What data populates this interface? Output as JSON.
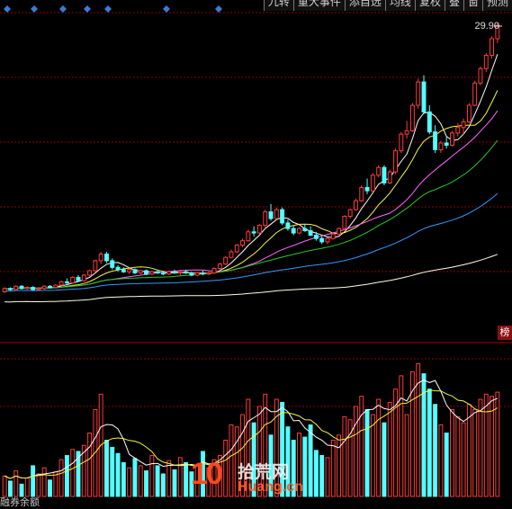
{
  "toolbar": {
    "items": [
      "九转",
      "重大事件",
      "添自选",
      "均线",
      "复权",
      "叠",
      "窗",
      "预测"
    ]
  },
  "price_label": "29.90",
  "side_tag": "榜",
  "bottom_label": "融券余额",
  "watermark": {
    "cn": "拾荒网",
    "en": "Huang.cn"
  },
  "colors": {
    "up": "#ff3b3b",
    "down": "#54ffff",
    "grid": "#8a0000",
    "ma5": "#ffffff",
    "ma10": "#f5f542",
    "ma20": "#ff66ff",
    "ma30": "#22cc22",
    "ma60": "#3399ff",
    "ma120": "#ffffe6",
    "diamond": "#3b7bd6"
  },
  "chart_data": {
    "type": "candlestick",
    "price_axis_max_label": "29.90",
    "candles": [
      [
        7.0,
        7.4,
        6.9,
        7.3
      ],
      [
        7.3,
        7.4,
        7.1,
        7.2
      ],
      [
        7.2,
        7.6,
        7.1,
        7.5
      ],
      [
        7.5,
        7.6,
        7.2,
        7.3
      ],
      [
        7.3,
        7.5,
        7.2,
        7.4
      ],
      [
        7.4,
        7.5,
        7.1,
        7.2
      ],
      [
        7.2,
        7.4,
        7.1,
        7.3
      ],
      [
        7.3,
        7.6,
        7.2,
        7.5
      ],
      [
        7.5,
        7.6,
        7.3,
        7.4
      ],
      [
        7.4,
        7.7,
        7.3,
        7.6
      ],
      [
        7.6,
        8.0,
        7.5,
        7.9
      ],
      [
        7.9,
        8.2,
        7.7,
        7.8
      ],
      [
        7.8,
        8.4,
        7.7,
        8.3
      ],
      [
        8.3,
        8.5,
        7.9,
        8.0
      ],
      [
        8.0,
        8.6,
        7.9,
        8.5
      ],
      [
        8.5,
        9.0,
        8.4,
        8.9
      ],
      [
        8.9,
        9.9,
        8.8,
        9.8
      ],
      [
        9.8,
        10.6,
        9.5,
        10.4
      ],
      [
        10.4,
        10.6,
        9.6,
        9.8
      ],
      [
        9.8,
        10.0,
        9.0,
        9.2
      ],
      [
        9.2,
        9.4,
        8.8,
        9.0
      ],
      [
        9.0,
        9.2,
        8.7,
        8.8
      ],
      [
        8.8,
        9.1,
        8.6,
        9.0
      ],
      [
        9.0,
        9.1,
        8.6,
        8.7
      ],
      [
        8.7,
        9.0,
        8.6,
        8.9
      ],
      [
        8.9,
        9.0,
        8.5,
        8.6
      ],
      [
        8.6,
        8.9,
        8.5,
        8.8
      ],
      [
        8.8,
        9.0,
        8.6,
        8.7
      ],
      [
        8.7,
        8.9,
        8.5,
        8.6
      ],
      [
        8.6,
        8.9,
        8.5,
        8.8
      ],
      [
        8.8,
        9.0,
        8.6,
        8.7
      ],
      [
        8.7,
        8.9,
        8.5,
        8.8
      ],
      [
        8.8,
        9.0,
        8.6,
        8.7
      ],
      [
        8.7,
        8.8,
        8.4,
        8.5
      ],
      [
        8.5,
        8.8,
        8.4,
        8.7
      ],
      [
        8.7,
        8.9,
        8.5,
        8.6
      ],
      [
        8.6,
        8.8,
        8.5,
        8.7
      ],
      [
        8.7,
        9.2,
        8.6,
        9.1
      ],
      [
        9.1,
        9.6,
        9.0,
        9.5
      ],
      [
        9.5,
        10.2,
        9.4,
        10.1
      ],
      [
        10.1,
        10.8,
        10.0,
        10.6
      ],
      [
        10.6,
        11.3,
        10.5,
        11.2
      ],
      [
        11.2,
        11.8,
        11.0,
        11.6
      ],
      [
        11.6,
        12.6,
        11.5,
        12.4
      ],
      [
        12.4,
        12.9,
        12.0,
        12.3
      ],
      [
        12.3,
        13.1,
        12.2,
        13.0
      ],
      [
        13.0,
        14.4,
        12.8,
        14.2
      ],
      [
        14.2,
        14.9,
        13.4,
        13.6
      ],
      [
        13.6,
        14.6,
        13.5,
        14.4
      ],
      [
        14.4,
        14.6,
        13.0,
        13.2
      ],
      [
        13.2,
        13.5,
        12.5,
        12.7
      ],
      [
        12.7,
        13.0,
        12.1,
        12.3
      ],
      [
        12.3,
        12.8,
        12.2,
        12.7
      ],
      [
        12.7,
        13.1,
        12.4,
        12.5
      ],
      [
        12.5,
        12.9,
        12.0,
        12.1
      ],
      [
        12.1,
        12.4,
        11.6,
        11.8
      ],
      [
        11.8,
        12.0,
        11.3,
        11.5
      ],
      [
        11.5,
        11.9,
        11.3,
        11.8
      ],
      [
        11.8,
        12.3,
        11.7,
        12.2
      ],
      [
        12.2,
        12.8,
        12.1,
        12.7
      ],
      [
        12.7,
        13.9,
        12.6,
        13.8
      ],
      [
        13.8,
        14.5,
        13.6,
        14.4
      ],
      [
        14.4,
        15.4,
        14.3,
        15.2
      ],
      [
        15.2,
        16.6,
        15.1,
        16.4
      ],
      [
        16.4,
        17.2,
        15.8,
        16.1
      ],
      [
        16.1,
        17.7,
        16.0,
        17.5
      ],
      [
        17.5,
        18.4,
        17.3,
        18.2
      ],
      [
        18.2,
        18.4,
        16.6,
        16.8
      ],
      [
        16.8,
        18.0,
        16.7,
        17.8
      ],
      [
        17.8,
        19.9,
        17.6,
        19.7
      ],
      [
        19.7,
        21.4,
        19.5,
        21.2
      ],
      [
        21.2,
        22.4,
        20.8,
        21.5
      ],
      [
        21.5,
        24.0,
        21.4,
        23.8
      ],
      [
        23.8,
        26.2,
        23.5,
        25.9
      ],
      [
        25.9,
        26.5,
        23.0,
        23.2
      ],
      [
        23.2,
        23.8,
        21.2,
        21.4
      ],
      [
        21.4,
        22.0,
        19.5,
        19.8
      ],
      [
        19.8,
        20.6,
        19.5,
        20.4
      ],
      [
        20.4,
        21.0,
        19.9,
        20.2
      ],
      [
        20.2,
        21.5,
        20.1,
        21.3
      ],
      [
        21.3,
        22.2,
        21.0,
        21.8
      ],
      [
        21.8,
        22.6,
        21.2,
        22.3
      ],
      [
        22.3,
        24.0,
        22.2,
        23.8
      ],
      [
        23.8,
        26.0,
        23.7,
        25.8
      ],
      [
        25.8,
        27.3,
        25.6,
        27.1
      ],
      [
        27.1,
        28.5,
        26.8,
        28.3
      ],
      [
        28.3,
        30.0,
        28.0,
        29.8
      ],
      [
        29.8,
        31.2,
        29.4,
        31.0
      ]
    ],
    "volume": [
      0.2,
      0.15,
      0.25,
      0.12,
      0.18,
      0.3,
      0.22,
      0.28,
      0.16,
      0.24,
      0.36,
      0.4,
      0.46,
      0.44,
      0.5,
      0.62,
      0.85,
      1.0,
      0.55,
      0.48,
      0.42,
      0.33,
      0.28,
      0.37,
      0.3,
      0.25,
      0.4,
      0.3,
      0.22,
      0.35,
      0.26,
      0.38,
      0.33,
      0.24,
      0.3,
      0.44,
      0.28,
      0.36,
      0.4,
      0.55,
      0.7,
      0.68,
      0.8,
      0.95,
      0.72,
      0.88,
      1.0,
      0.6,
      0.95,
      0.92,
      0.68,
      0.55,
      0.62,
      0.58,
      0.7,
      0.45,
      0.4,
      0.38,
      0.55,
      0.6,
      0.78,
      0.75,
      0.88,
      0.98,
      0.85,
      0.8,
      0.95,
      0.72,
      0.92,
      1.05,
      1.18,
      0.8,
      1.22,
      1.3,
      1.2,
      1.05,
      0.9,
      0.7,
      0.62,
      0.85,
      0.78,
      0.72,
      0.9,
      0.85,
      0.95,
      1.0,
      0.98,
      1.02
    ],
    "ma_lines": [
      {
        "name": "MA5",
        "period": 5,
        "color": "#ffffff"
      },
      {
        "name": "MA10",
        "period": 10,
        "color": "#f5f542"
      },
      {
        "name": "MA20",
        "period": 20,
        "color": "#ff66ff"
      },
      {
        "name": "MA30",
        "period": 30,
        "color": "#22cc22"
      },
      {
        "name": "MA60",
        "period": 60,
        "color": "#3399ff"
      },
      {
        "name": "MA120",
        "period": 120,
        "color": "#ffffe6"
      }
    ],
    "grid": true
  }
}
